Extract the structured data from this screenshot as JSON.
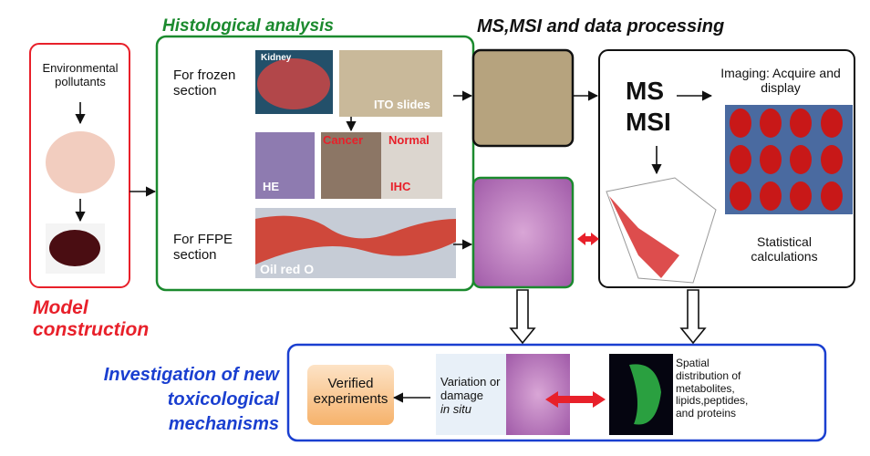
{
  "model": {
    "input": "Environmental pollutants",
    "title": "Model construction"
  },
  "histology": {
    "title": "Histological analysis",
    "frozen": {
      "label": "For frozen section",
      "kidney": "Kidney",
      "slides": "ITO slides",
      "he": "HE",
      "cancer": "Cancer",
      "normal": "Normal",
      "ihc": "IHC"
    },
    "ffpe": {
      "label": "For FFPE section",
      "stain": "Oil red O"
    }
  },
  "ms": {
    "title": "MS,MSI and data processing",
    "ms": "MS",
    "msi": "MSI",
    "imaging": "Imaging: Acquire and display",
    "statistics": "Statistical calculations"
  },
  "investigation": {
    "title": "Investigation of new toxicological mechanisms",
    "verified": "Verified experiments",
    "variation": "Variation or damage",
    "in_situ": "in situ",
    "spatial": "Spatial distribution of metabolites, lipids,peptides, and proteins"
  }
}
